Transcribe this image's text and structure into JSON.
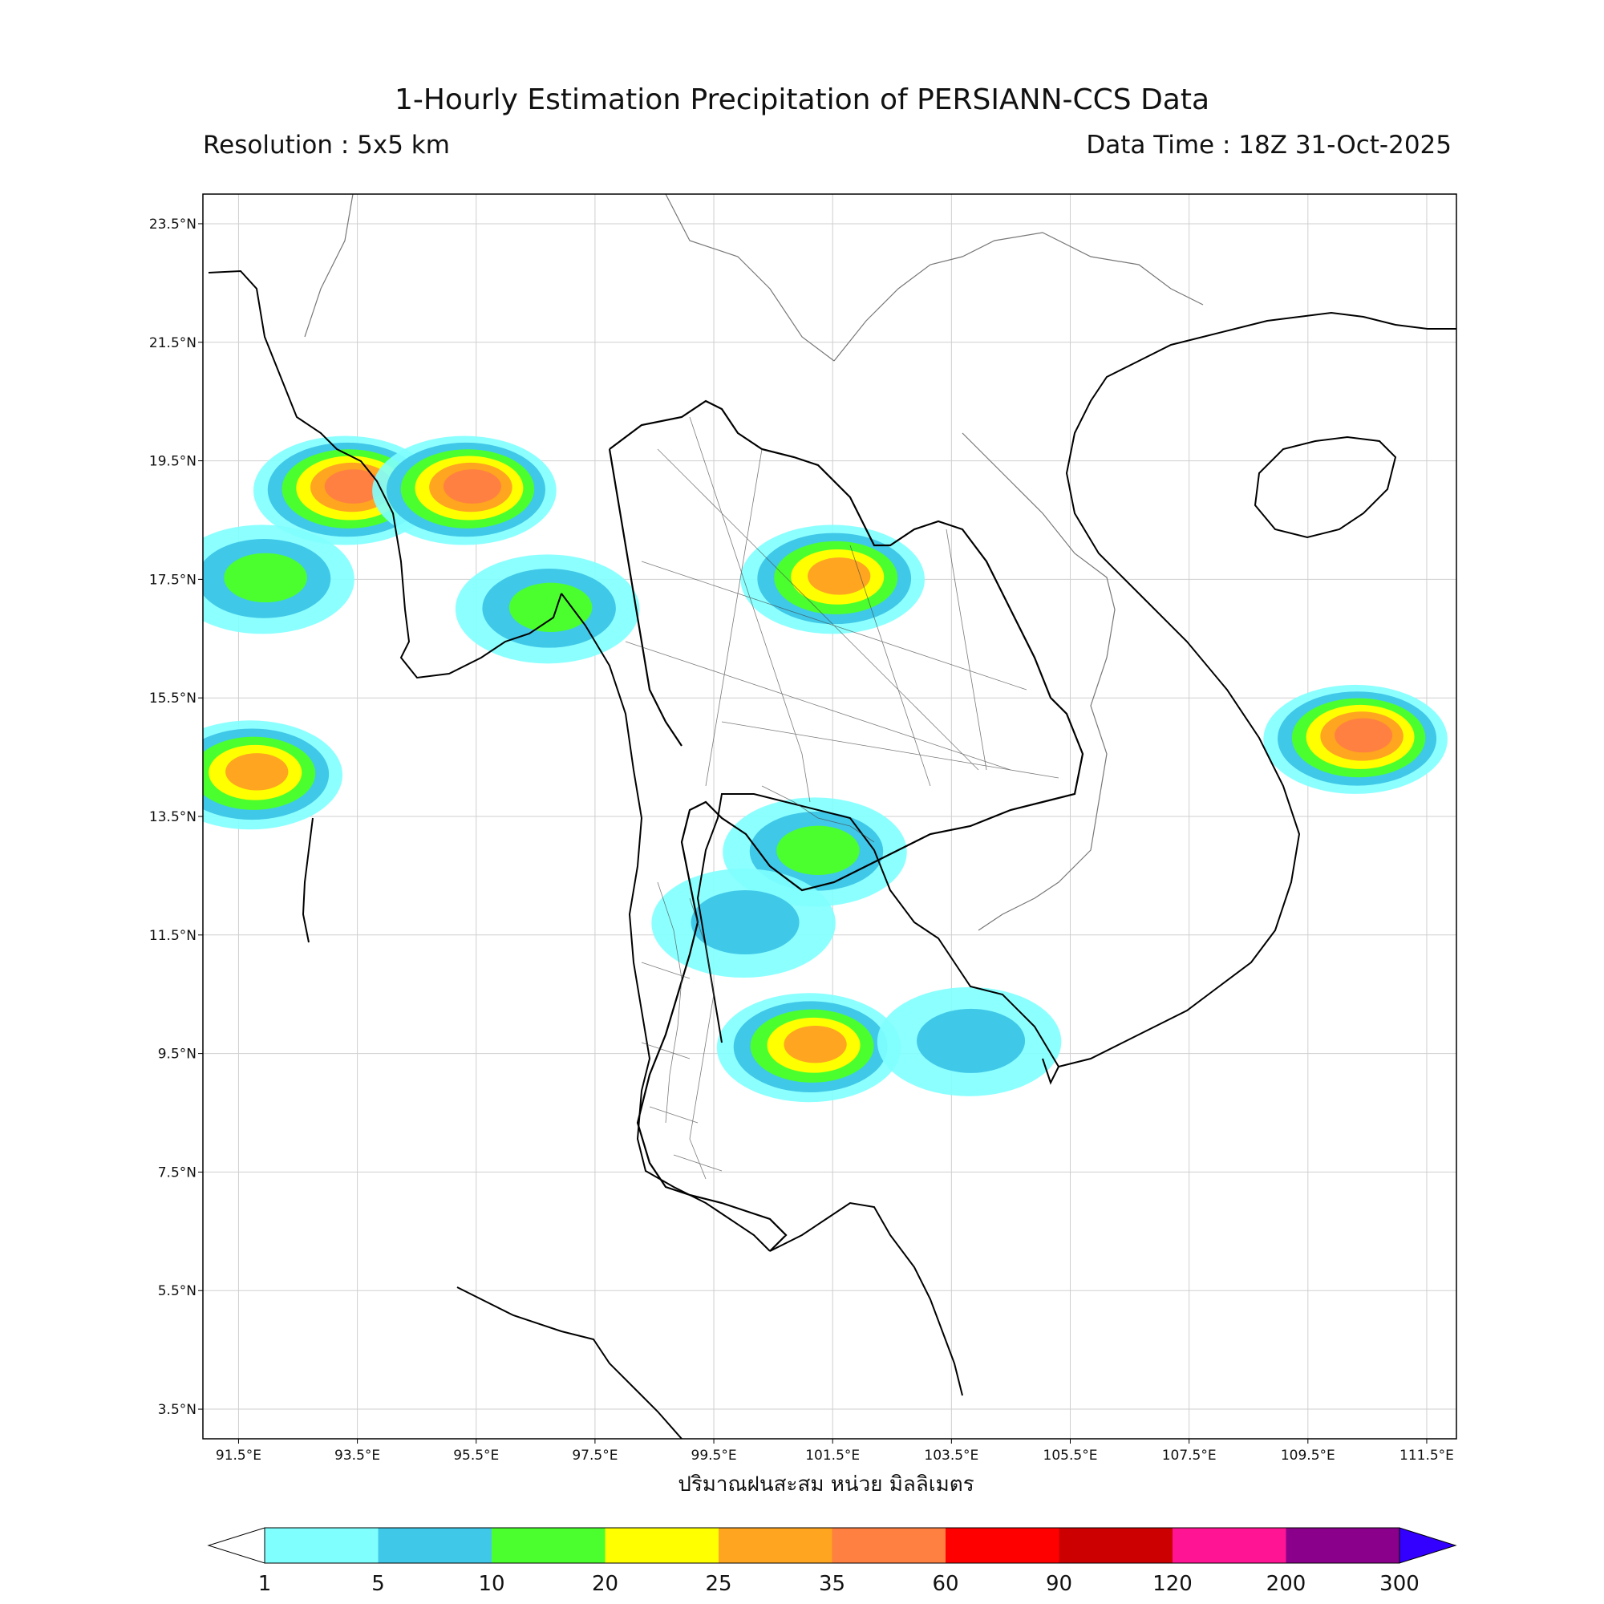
{
  "header": {
    "title": "1-Hourly Estimation Precipitation of PERSIANN-CCS Data",
    "resolution": "Resolution : 5x5 km",
    "data_time": "Data Time : 18Z 31-Oct-2025"
  },
  "map": {
    "lat_labels": [
      "23.5°N",
      "21.5°N",
      "19.5°N",
      "17.5°N",
      "15.5°N",
      "13.5°N",
      "11.5°N",
      "9.5°N",
      "7.5°N",
      "5.5°N",
      "3.5°N"
    ],
    "lon_labels": [
      "91.5°E",
      "93.5°E",
      "95.5°E",
      "97.5°E",
      "99.5°E",
      "101.5°E",
      "103.5°E",
      "105.5°E",
      "107.5°E",
      "109.5°E",
      "111.5°E"
    ],
    "extent": {
      "lon_min": 90.9,
      "lon_max": 112.0,
      "lat_min": 3.0,
      "lat_max": 24.0
    },
    "rain_areas": [
      {
        "lon": 93.3,
        "lat": 19.0,
        "intensity": "35"
      },
      {
        "lon": 95.3,
        "lat": 19.0,
        "intensity": "35"
      },
      {
        "lon": 91.9,
        "lat": 17.5,
        "intensity": "10"
      },
      {
        "lon": 96.7,
        "lat": 17.0,
        "intensity": "10"
      },
      {
        "lon": 101.5,
        "lat": 17.5,
        "intensity": "25"
      },
      {
        "lon": 110.3,
        "lat": 14.8,
        "intensity": "35"
      },
      {
        "lon": 101.2,
        "lat": 12.9,
        "intensity": "10"
      },
      {
        "lon": 100.0,
        "lat": 11.7,
        "intensity": "5"
      },
      {
        "lon": 101.1,
        "lat": 9.6,
        "intensity": "25"
      },
      {
        "lon": 103.8,
        "lat": 9.7,
        "intensity": "5"
      },
      {
        "lon": 91.7,
        "lat": 14.2,
        "intensity": "25"
      }
    ]
  },
  "unit_label": "ปริมาณฝนสะสม หน่วย มิลลิเมตร",
  "colorbar": {
    "ticks": [
      "1",
      "5",
      "10",
      "20",
      "25",
      "35",
      "60",
      "90",
      "120",
      "200",
      "300"
    ],
    "colors": [
      "#80FFFF",
      "#40C8E8",
      "#4BFF2E",
      "#FFFF00",
      "#FFA520",
      "#FF8040",
      "#FF0000",
      "#CC0000",
      "#FF1493",
      "#8B008B"
    ],
    "extend_max_color": "#3300FF",
    "extend_min_color": "#FFFFFF"
  }
}
